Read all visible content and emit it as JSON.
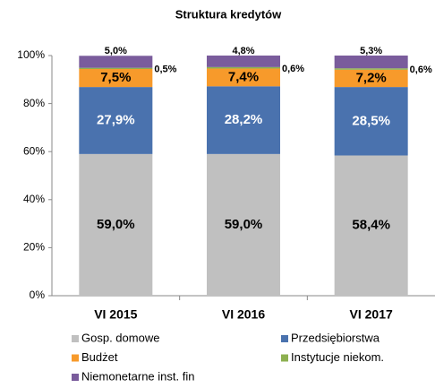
{
  "chart_data": {
    "type": "stacked_bar",
    "title": "Struktura kredytów",
    "categories": [
      "VI 2015",
      "VI 2016",
      "VI 2017"
    ],
    "series": [
      {
        "name": "Gosp. domowe",
        "color": "#c0c0c0",
        "values": [
          59.0,
          59.0,
          58.4
        ],
        "value_labels": [
          "59,0%",
          "59,0%",
          "58,4%"
        ]
      },
      {
        "name": "Przedsiębiorstwa",
        "color": "#4a72ae",
        "values": [
          27.9,
          28.2,
          28.5
        ],
        "value_labels": [
          "27,9%",
          "28,2%",
          "28,5%"
        ]
      },
      {
        "name": "Budżet",
        "color": "#f79a2b",
        "values": [
          7.5,
          7.4,
          7.2
        ],
        "value_labels": [
          "7,5%",
          "7,4%",
          "7,2%"
        ]
      },
      {
        "name": "Instytucje niekom.",
        "color": "#8db050",
        "values": [
          0.5,
          0.6,
          0.6
        ],
        "value_labels": [
          "0,5%",
          "0,6%",
          "0,6%"
        ]
      },
      {
        "name": "Niemonetarne inst. fin",
        "color": "#7a5c9c",
        "values": [
          5.0,
          4.8,
          5.3
        ],
        "value_labels": [
          "5,0%",
          "4,8%",
          "5,3%"
        ]
      }
    ],
    "ylim": [
      0,
      100
    ],
    "yticks": [
      {
        "value": 0,
        "label": "0%"
      },
      {
        "value": 20,
        "label": "20%"
      },
      {
        "value": 40,
        "label": "40%"
      },
      {
        "value": 60,
        "label": "60%"
      },
      {
        "value": 80,
        "label": "80%"
      },
      {
        "value": 100,
        "label": "100%"
      }
    ]
  }
}
